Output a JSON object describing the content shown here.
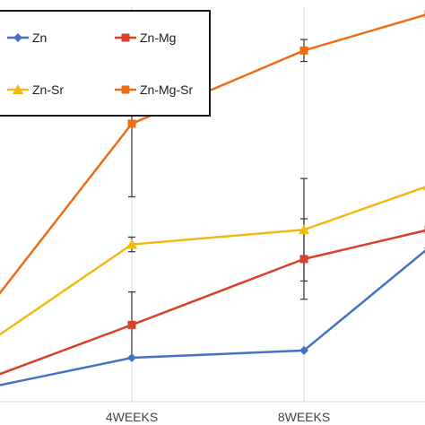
{
  "chart_data": {
    "type": "line",
    "title": "",
    "xlabel": "",
    "ylabel": "",
    "categories": [
      "",
      "4WEEKS",
      "8WEEKS",
      ""
    ],
    "ylim": [
      0,
      100
    ],
    "grid": "vertical",
    "legend": "top-left",
    "series": [
      {
        "name": "Zn",
        "color": "#4472C4",
        "marker": "diamond",
        "values": [
          2,
          12,
          14,
          42
        ],
        "error": [
          null,
          null,
          null,
          null
        ]
      },
      {
        "name": "Zn-Mg",
        "color": "#D9412B",
        "marker": "square",
        "values": [
          3,
          21,
          39,
          47
        ],
        "error": [
          null,
          9,
          11,
          null
        ]
      },
      {
        "name": "Zn-Sr",
        "color": "#F2B90F",
        "marker": "triangle",
        "values": [
          10,
          43,
          47,
          59
        ],
        "error": [
          null,
          2,
          14,
          null
        ]
      },
      {
        "name": "Zn-Mg-Sr",
        "color": "#ED6E17",
        "marker": "square",
        "values": [
          14,
          76,
          96,
          106
        ],
        "error": [
          null,
          20,
          3,
          null
        ]
      }
    ]
  }
}
